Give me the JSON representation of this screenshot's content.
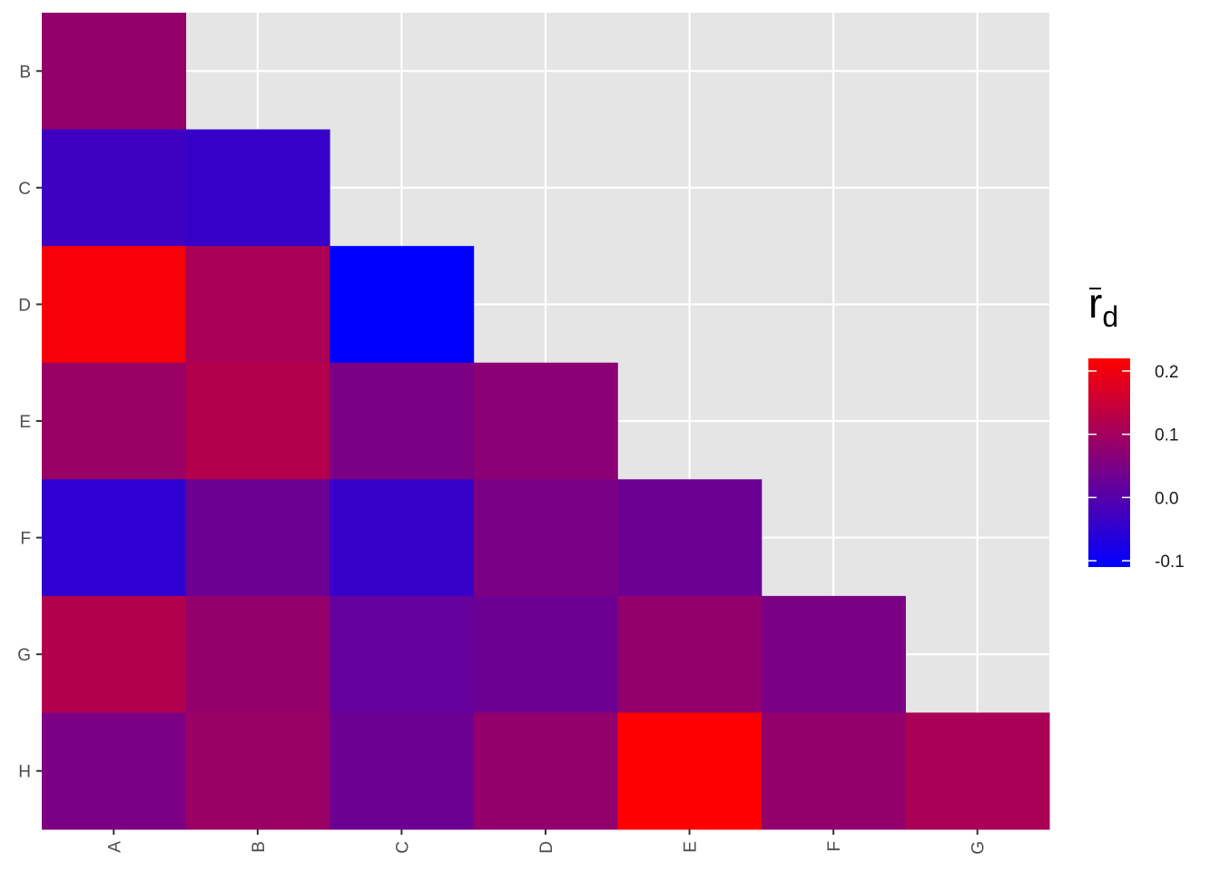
{
  "chart_data": {
    "type": "heatmap",
    "x_categories": [
      "A",
      "B",
      "C",
      "D",
      "E",
      "F",
      "G"
    ],
    "y_categories": [
      "B",
      "C",
      "D",
      "E",
      "F",
      "G",
      "H"
    ],
    "cells": [
      {
        "x": "A",
        "y": "B",
        "value": 0.08
      },
      {
        "x": "A",
        "y": "C",
        "value": -0.03
      },
      {
        "x": "B",
        "y": "C",
        "value": -0.04
      },
      {
        "x": "A",
        "y": "D",
        "value": 0.21
      },
      {
        "x": "B",
        "y": "D",
        "value": 0.11
      },
      {
        "x": "C",
        "y": "D",
        "value": -0.11
      },
      {
        "x": "A",
        "y": "E",
        "value": 0.09
      },
      {
        "x": "B",
        "y": "E",
        "value": 0.12
      },
      {
        "x": "C",
        "y": "E",
        "value": 0.05
      },
      {
        "x": "D",
        "y": "E",
        "value": 0.07
      },
      {
        "x": "A",
        "y": "F",
        "value": -0.05
      },
      {
        "x": "B",
        "y": "F",
        "value": 0.03
      },
      {
        "x": "C",
        "y": "F",
        "value": -0.04
      },
      {
        "x": "D",
        "y": "F",
        "value": 0.05
      },
      {
        "x": "E",
        "y": "F",
        "value": 0.03
      },
      {
        "x": "A",
        "y": "G",
        "value": 0.12
      },
      {
        "x": "B",
        "y": "G",
        "value": 0.08
      },
      {
        "x": "C",
        "y": "G",
        "value": 0.02
      },
      {
        "x": "D",
        "y": "G",
        "value": 0.03
      },
      {
        "x": "E",
        "y": "G",
        "value": 0.08
      },
      {
        "x": "F",
        "y": "G",
        "value": 0.05
      },
      {
        "x": "A",
        "y": "H",
        "value": 0.05
      },
      {
        "x": "B",
        "y": "H",
        "value": 0.09
      },
      {
        "x": "C",
        "y": "H",
        "value": 0.03
      },
      {
        "x": "D",
        "y": "H",
        "value": 0.08
      },
      {
        "x": "E",
        "y": "H",
        "value": 0.22
      },
      {
        "x": "F",
        "y": "H",
        "value": 0.08
      },
      {
        "x": "G",
        "y": "H",
        "value": 0.11
      }
    ],
    "color_scale": {
      "low": "#0000ff",
      "high": "#ff0000",
      "limits": [
        -0.11,
        0.22
      ]
    },
    "legend": {
      "title_main": "r",
      "title_sub": "d",
      "title_overbar": true,
      "breaks": [
        0.2,
        0.1,
        0.0,
        -0.1
      ],
      "labels": [
        "0.2",
        "0.1",
        "0.0",
        "-0.1"
      ],
      "position": "right"
    },
    "grid": true,
    "panel_background": "#e5e5e5",
    "grid_color": "#ffffff",
    "x_tick_label_rotation": "vertical"
  }
}
